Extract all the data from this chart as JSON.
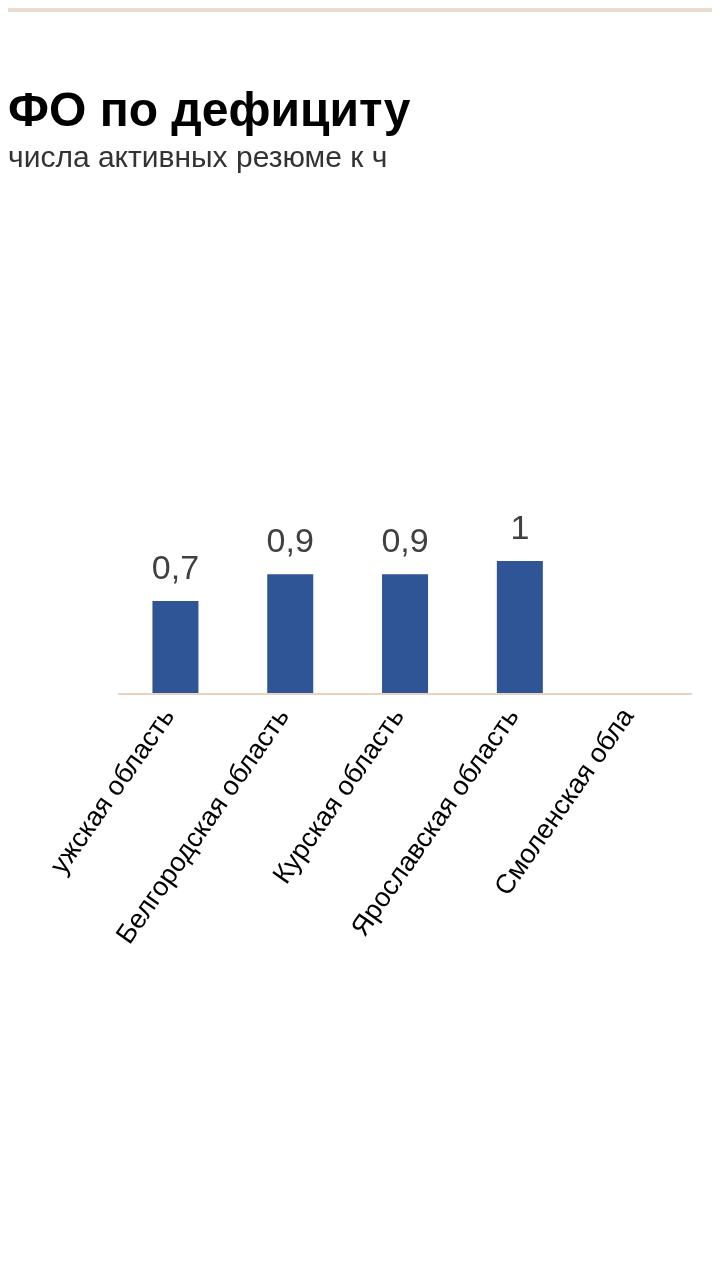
{
  "chart_data": {
    "type": "bar",
    "title": "ФО по дефициту",
    "subtitle": "числа активных резюме к ч",
    "categories": [
      "ужская область",
      "Белгородская область",
      "Курская область",
      "Ярославская область",
      "Смоленская обла"
    ],
    "values": [
      0.7,
      0.9,
      0.9,
      1,
      null
    ],
    "value_labels": [
      "0,7",
      "0,9",
      "0,9",
      "1",
      null
    ],
    "color": "#2f5597",
    "tick_labels": "x"
  }
}
